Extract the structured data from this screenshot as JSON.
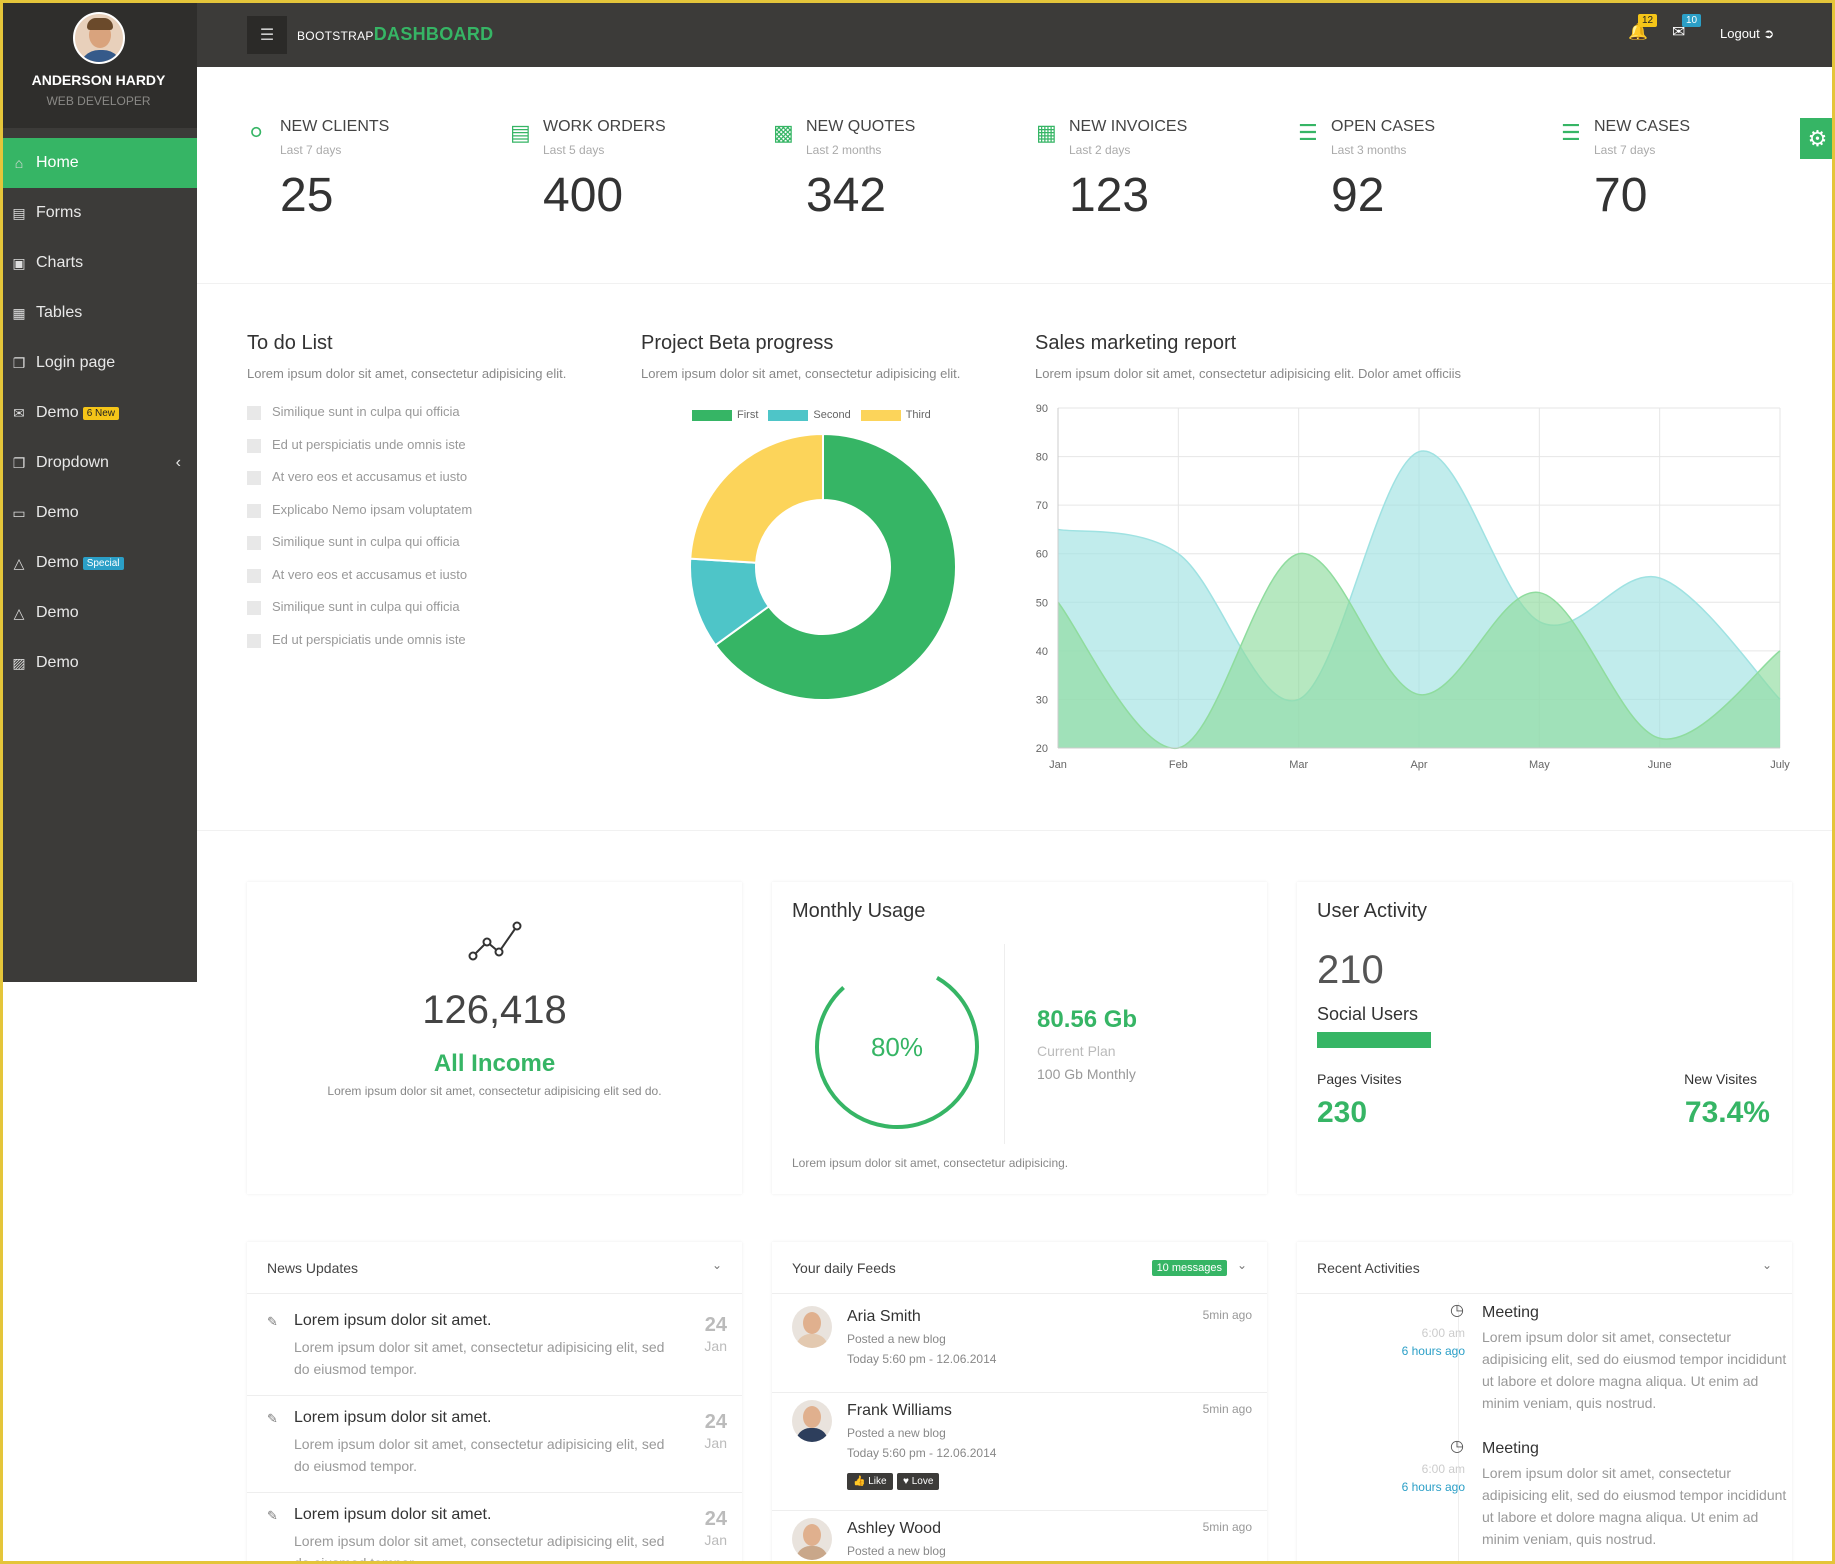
{
  "header": {
    "brand_small": "BOOTSTRAP",
    "brand_big": "DASHBOARD",
    "notifications_count": "12",
    "messages_count": "10",
    "logout_label": "Logout"
  },
  "profile": {
    "name": "ANDERSON HARDY",
    "role": "WEB DEVELOPER"
  },
  "sidebar": {
    "items": [
      {
        "label": "Home",
        "icon": "home-icon"
      },
      {
        "label": "Forms",
        "icon": "forms-icon"
      },
      {
        "label": "Charts",
        "icon": "charts-icon"
      },
      {
        "label": "Tables",
        "icon": "tables-icon"
      },
      {
        "label": "Login page",
        "icon": "login-icon"
      },
      {
        "label": "Demo",
        "icon": "envelope-icon",
        "badge": "6 New"
      },
      {
        "label": "Dropdown",
        "icon": "dropdown-icon"
      },
      {
        "label": "Demo",
        "icon": "monitor-icon"
      },
      {
        "label": "Demo",
        "icon": "flask-icon",
        "badge": "Special"
      },
      {
        "label": "Demo",
        "icon": "flask-icon"
      },
      {
        "label": "Demo",
        "icon": "image-icon"
      }
    ]
  },
  "stats": [
    {
      "title": "NEW CLIENTS",
      "sub": "Last 7 days",
      "value": "25"
    },
    {
      "title": "WORK ORDERS",
      "sub": "Last 5 days",
      "value": "400"
    },
    {
      "title": "NEW QUOTES",
      "sub": "Last 2 months",
      "value": "342"
    },
    {
      "title": "NEW INVOICES",
      "sub": "Last 2 days",
      "value": "123"
    },
    {
      "title": "OPEN CASES",
      "sub": "Last 3 months",
      "value": "92"
    },
    {
      "title": "NEW CASES",
      "sub": "Last 7 days",
      "value": "70"
    }
  ],
  "todo": {
    "title": "To do List",
    "subtitle": "Lorem ipsum dolor sit amet, consectetur adipisicing elit.",
    "items": [
      "Similique sunt in culpa qui officia",
      "Ed ut perspiciatis unde omnis iste",
      "At vero eos et accusamus et iusto",
      "Explicabo Nemo ipsam voluptatem",
      "Similique sunt in culpa qui officia",
      "At vero eos et accusamus et iusto",
      "Similique sunt in culpa qui officia",
      "Ed ut perspiciatis unde omnis iste"
    ]
  },
  "beta": {
    "title": "Project Beta progress",
    "subtitle": "Lorem ipsum dolor sit amet, consectetur adipisicing elit."
  },
  "sales": {
    "title": "Sales marketing report",
    "subtitle": "Lorem ipsum dolor sit amet, consectetur adipisicing elit. Dolor amet officiis"
  },
  "chart_data": [
    {
      "type": "pie",
      "categories": [
        "First",
        "Second",
        "Third"
      ],
      "values": [
        65,
        11,
        24
      ],
      "colors": [
        "#36b565",
        "#4ec5c8",
        "#fcd45a"
      ],
      "legend": "top"
    },
    {
      "type": "area",
      "x": [
        "Jan",
        "Feb",
        "Mar",
        "Apr",
        "May",
        "June",
        "July"
      ],
      "ylim": [
        20,
        90
      ],
      "yticks": [
        20,
        30,
        40,
        50,
        60,
        70,
        80,
        90
      ],
      "grid": true,
      "series": [
        {
          "values": [
            65,
            60,
            30,
            81,
            46,
            55,
            30
          ],
          "color": "#9fe2e2"
        },
        {
          "values": [
            50,
            20,
            60,
            31,
            52,
            22,
            40
          ],
          "color": "#8fdc9e"
        }
      ]
    }
  ],
  "income": {
    "value": "126,418",
    "label": "All Income",
    "sub": "Lorem ipsum dolor sit amet, consectetur adipisicing elit sed do."
  },
  "usage": {
    "title": "Monthly Usage",
    "percent_text": "80%",
    "percent": 80,
    "gb": "80.56 Gb",
    "plan_label": "Current Plan",
    "plan_value": "100 Gb Monthly",
    "foot": "Lorem ipsum dolor sit amet, consectetur adipisicing."
  },
  "activity": {
    "title": "User Activity",
    "count": "210",
    "label": "Social Users",
    "pages_label": "Pages Visites",
    "pages_value": "230",
    "new_label": "New Visites",
    "new_value": "73.4%"
  },
  "news": {
    "title": "News Updates",
    "items": [
      {
        "title": "Lorem ipsum dolor sit amet.",
        "desc": "Lorem ipsum dolor sit amet, consectetur adipisicing elit, sed do eiusmod tempor.",
        "day": "24",
        "month": "Jan"
      },
      {
        "title": "Lorem ipsum dolor sit amet.",
        "desc": "Lorem ipsum dolor sit amet, consectetur adipisicing elit, sed do eiusmod tempor.",
        "day": "24",
        "month": "Jan"
      },
      {
        "title": "Lorem ipsum dolor sit amet.",
        "desc": "Lorem ipsum dolor sit amet, consectetur adipisicing elit, sed do eiusmod tempor.",
        "day": "24",
        "month": "Jan"
      }
    ]
  },
  "feeds": {
    "title": "Your daily Feeds",
    "badge": "10 messages",
    "like_label": "Like",
    "love_label": "Love",
    "items": [
      {
        "name": "Aria Smith",
        "action": "Posted a new blog",
        "date": "Today 5:60 pm - 12.06.2014",
        "time": "5min ago"
      },
      {
        "name": "Frank Williams",
        "action": "Posted a new blog",
        "date": "Today 5:60 pm - 12.06.2014",
        "time": "5min ago"
      },
      {
        "name": "Ashley Wood",
        "action": "Posted a new blog",
        "date": "",
        "time": "5min ago"
      }
    ]
  },
  "activities": {
    "title": "Recent Activities",
    "items": [
      {
        "time": "6:00 am",
        "ago": "6 hours ago",
        "name": "Meeting",
        "desc": "Lorem ipsum dolor sit amet, consectetur adipisicing elit, sed do eiusmod tempor incididunt ut labore et dolore magna aliqua. Ut enim ad minim veniam, quis nostrud."
      },
      {
        "time": "6:00 am",
        "ago": "6 hours ago",
        "name": "Meeting",
        "desc": "Lorem ipsum dolor sit amet, consectetur adipisicing elit, sed do eiusmod tempor incididunt ut labore et dolore magna aliqua. Ut enim ad minim veniam, quis nostrud."
      }
    ]
  }
}
